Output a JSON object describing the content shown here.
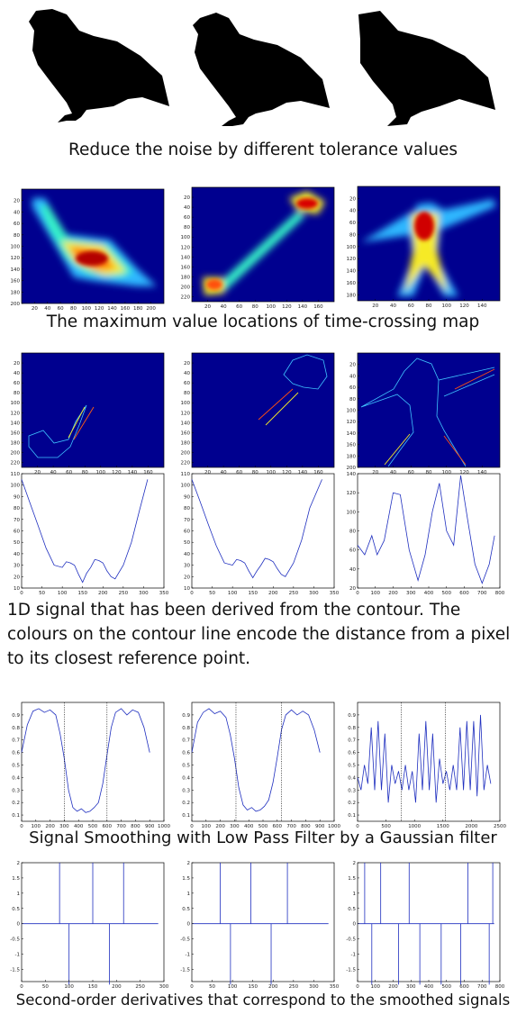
{
  "captions": {
    "row1": "Reduce the noise by different tolerance values",
    "row2": "The maximum value locations of time-crossing map",
    "row3": "1D signal that has been derived from the contour. The colours on the contour line encode the distance from a pixel to its closest reference point.",
    "row4": "Signal Smoothing with Low Pass Filter by a Gaussian filter",
    "row5": "Second-order derivatives that correspond to the smoothed signals"
  },
  "colors": {
    "bg_map": "#00008f",
    "signal": "#1f2fbf",
    "frame": "#000000"
  },
  "chart_data": [
    {
      "type": "heatmap",
      "panel": "heatmap-1",
      "xticks": [
        20,
        40,
        60,
        80,
        100,
        120,
        140,
        160,
        180,
        200
      ],
      "yticks": [
        20,
        40,
        60,
        80,
        100,
        120,
        140,
        160,
        180,
        200
      ],
      "xlim": [
        0,
        220
      ],
      "ylim": [
        0,
        200
      ]
    },
    {
      "type": "heatmap",
      "panel": "heatmap-2",
      "xticks": [
        20,
        40,
        60,
        80,
        100,
        120,
        140,
        160
      ],
      "yticks": [
        20,
        40,
        60,
        80,
        100,
        120,
        140,
        160,
        180,
        200,
        220
      ],
      "xlim": [
        0,
        180
      ],
      "ylim": [
        0,
        230
      ]
    },
    {
      "type": "heatmap",
      "panel": "heatmap-3",
      "xticks": [
        20,
        40,
        60,
        80,
        100,
        120,
        140
      ],
      "yticks": [
        20,
        40,
        60,
        80,
        100,
        120,
        140,
        160,
        180
      ],
      "xlim": [
        0,
        160
      ],
      "ylim": [
        0,
        190
      ]
    },
    {
      "type": "line",
      "panel": "contour-1",
      "xticks": [
        20,
        40,
        60,
        80,
        100,
        120,
        140,
        160
      ],
      "yticks": [
        20,
        40,
        60,
        80,
        100,
        120,
        140,
        160,
        180,
        200,
        220
      ],
      "xlim": [
        0,
        180
      ],
      "ylim": [
        0,
        230
      ]
    },
    {
      "type": "line",
      "panel": "contour-2",
      "xticks": [
        20,
        40,
        60,
        80,
        100,
        120,
        140,
        160
      ],
      "yticks": [
        20,
        40,
        60,
        80,
        100,
        120,
        140,
        160,
        180,
        200,
        220
      ],
      "xlim": [
        0,
        180
      ],
      "ylim": [
        0,
        230
      ]
    },
    {
      "type": "line",
      "panel": "contour-3",
      "xticks": [
        20,
        40,
        60,
        80,
        100,
        120,
        140
      ],
      "yticks": [
        20,
        40,
        60,
        80,
        100,
        120,
        140,
        160,
        180,
        200
      ],
      "xlim": [
        0,
        160
      ],
      "ylim": [
        0,
        200
      ]
    },
    {
      "type": "line",
      "panel": "signal-1",
      "xticks": [
        0,
        50,
        100,
        150,
        200,
        250,
        300,
        350
      ],
      "yticks": [
        10,
        20,
        30,
        40,
        50,
        60,
        70,
        80,
        90,
        100,
        110
      ],
      "xlim": [
        0,
        350
      ],
      "ylim": [
        10,
        110
      ],
      "x": [
        0,
        20,
        40,
        60,
        80,
        100,
        110,
        120,
        130,
        140,
        150,
        160,
        170,
        180,
        190,
        200,
        210,
        220,
        230,
        250,
        270,
        290,
        310
      ],
      "y": [
        105,
        85,
        65,
        45,
        30,
        28,
        33,
        32,
        30,
        22,
        15,
        23,
        28,
        35,
        34,
        32,
        25,
        20,
        18,
        30,
        50,
        78,
        105
      ]
    },
    {
      "type": "line",
      "panel": "signal-2",
      "xticks": [
        0,
        50,
        100,
        150,
        200,
        250,
        300,
        350
      ],
      "yticks": [
        10,
        20,
        30,
        40,
        50,
        60,
        70,
        80,
        90,
        100,
        110
      ],
      "xlim": [
        0,
        350
      ],
      "ylim": [
        10,
        110
      ],
      "x": [
        0,
        20,
        40,
        60,
        80,
        100,
        110,
        120,
        130,
        140,
        150,
        160,
        170,
        180,
        190,
        200,
        210,
        220,
        230,
        250,
        270,
        290,
        320
      ],
      "y": [
        105,
        86,
        66,
        47,
        32,
        30,
        35,
        34,
        32,
        25,
        19,
        25,
        30,
        36,
        35,
        33,
        27,
        22,
        20,
        32,
        52,
        80,
        105
      ]
    },
    {
      "type": "line",
      "panel": "signal-3",
      "xticks": [
        0,
        100,
        200,
        300,
        400,
        500,
        600,
        700,
        800
      ],
      "yticks": [
        20,
        40,
        60,
        80,
        100,
        120,
        140
      ],
      "xlim": [
        0,
        800
      ],
      "ylim": [
        20,
        140
      ],
      "x": [
        0,
        40,
        80,
        110,
        150,
        200,
        240,
        290,
        340,
        380,
        420,
        460,
        500,
        540,
        580,
        620,
        660,
        700,
        740,
        770
      ],
      "y": [
        65,
        55,
        75,
        55,
        70,
        120,
        118,
        60,
        28,
        55,
        100,
        130,
        80,
        65,
        138,
        90,
        45,
        25,
        45,
        75
      ]
    },
    {
      "type": "line",
      "panel": "smooth-1",
      "xticks": [
        0,
        100,
        200,
        300,
        400,
        500,
        600,
        700,
        800,
        900,
        1000
      ],
      "yticks": [
        0.1,
        0.2,
        0.3,
        0.4,
        0.5,
        0.6,
        0.7,
        0.8,
        0.9
      ],
      "xlim": [
        0,
        1000
      ],
      "ylim": [
        0.05,
        1.0
      ],
      "vlines": [
        300,
        600
      ],
      "x": [
        0,
        40,
        80,
        120,
        160,
        200,
        240,
        270,
        300,
        330,
        360,
        390,
        420,
        450,
        480,
        510,
        540,
        570,
        600,
        630,
        660,
        700,
        740,
        780,
        820,
        860,
        900
      ],
      "y": [
        0.6,
        0.82,
        0.93,
        0.95,
        0.92,
        0.94,
        0.9,
        0.75,
        0.55,
        0.3,
        0.16,
        0.13,
        0.15,
        0.12,
        0.13,
        0.16,
        0.2,
        0.35,
        0.58,
        0.8,
        0.92,
        0.95,
        0.9,
        0.94,
        0.92,
        0.8,
        0.6
      ]
    },
    {
      "type": "line",
      "panel": "smooth-2",
      "xticks": [
        0,
        100,
        200,
        300,
        400,
        500,
        600,
        700,
        800,
        900,
        1000
      ],
      "yticks": [
        0.1,
        0.2,
        0.3,
        0.4,
        0.5,
        0.6,
        0.7,
        0.8,
        0.9
      ],
      "xlim": [
        0,
        1000
      ],
      "ylim": [
        0.05,
        1.0
      ],
      "vlines": [
        310,
        630
      ],
      "x": [
        0,
        40,
        80,
        120,
        160,
        200,
        240,
        270,
        300,
        330,
        360,
        390,
        420,
        450,
        480,
        510,
        540,
        570,
        600,
        630,
        660,
        700,
        740,
        780,
        820,
        860,
        900
      ],
      "y": [
        0.6,
        0.84,
        0.92,
        0.95,
        0.91,
        0.93,
        0.88,
        0.74,
        0.55,
        0.32,
        0.18,
        0.14,
        0.16,
        0.13,
        0.14,
        0.17,
        0.22,
        0.36,
        0.56,
        0.78,
        0.9,
        0.94,
        0.9,
        0.93,
        0.9,
        0.78,
        0.6
      ]
    },
    {
      "type": "line",
      "panel": "smooth-3",
      "xticks": [
        0,
        500,
        1000,
        1500,
        2000,
        2500
      ],
      "yticks": [
        0.1,
        0.2,
        0.3,
        0.4,
        0.5,
        0.6,
        0.7,
        0.8,
        0.9
      ],
      "xlim": [
        0,
        2500
      ],
      "ylim": [
        0.05,
        1.0
      ],
      "vlines": [
        770,
        1540
      ],
      "x": [
        0,
        60,
        120,
        180,
        240,
        300,
        360,
        420,
        480,
        540,
        600,
        660,
        720,
        780,
        840,
        900,
        960,
        1020,
        1080,
        1140,
        1200,
        1260,
        1320,
        1380,
        1440,
        1500,
        1560,
        1620,
        1680,
        1740,
        1800,
        1860,
        1920,
        1980,
        2040,
        2100,
        2160,
        2220,
        2280,
        2340
      ],
      "y": [
        0.4,
        0.3,
        0.5,
        0.35,
        0.8,
        0.3,
        0.85,
        0.3,
        0.75,
        0.2,
        0.5,
        0.35,
        0.45,
        0.3,
        0.5,
        0.3,
        0.45,
        0.2,
        0.75,
        0.3,
        0.85,
        0.3,
        0.75,
        0.2,
        0.55,
        0.35,
        0.45,
        0.3,
        0.5,
        0.3,
        0.8,
        0.3,
        0.85,
        0.3,
        0.85,
        0.25,
        0.9,
        0.3,
        0.5,
        0.35
      ]
    },
    {
      "type": "line",
      "panel": "deriv-1",
      "xticks": [
        0,
        50,
        100,
        150,
        200,
        250,
        300
      ],
      "yticks": [
        -1.5,
        -1,
        -0.5,
        0,
        0.5,
        1,
        1.5,
        2
      ],
      "xlim": [
        0,
        300
      ],
      "ylim": [
        -1.9,
        2.0
      ],
      "spikes": [
        [
          80,
          2
        ],
        [
          100,
          -2
        ],
        [
          150,
          2
        ],
        [
          185,
          -2
        ],
        [
          215,
          2
        ]
      ]
    },
    {
      "type": "line",
      "panel": "deriv-2",
      "xticks": [
        0,
        50,
        100,
        150,
        200,
        250,
        300,
        350
      ],
      "yticks": [
        -1.5,
        -1,
        -0.5,
        0,
        0.5,
        1,
        1.5,
        2
      ],
      "xlim": [
        0,
        350
      ],
      "ylim": [
        -1.9,
        2.0
      ],
      "spikes": [
        [
          70,
          2
        ],
        [
          95,
          -2
        ],
        [
          145,
          2
        ],
        [
          195,
          -2
        ],
        [
          235,
          2
        ]
      ]
    },
    {
      "type": "line",
      "panel": "deriv-3",
      "xticks": [
        0,
        100,
        200,
        300,
        400,
        500,
        600,
        700,
        800
      ],
      "yticks": [
        -1.5,
        -1,
        -0.5,
        0,
        0.5,
        1,
        1.5,
        2
      ],
      "xlim": [
        0,
        800
      ],
      "ylim": [
        -1.9,
        2.0
      ],
      "spikes": [
        [
          40,
          2
        ],
        [
          80,
          -2
        ],
        [
          130,
          2
        ],
        [
          230,
          -2
        ],
        [
          290,
          2
        ],
        [
          350,
          -2
        ],
        [
          470,
          -2
        ],
        [
          580,
          -2
        ],
        [
          620,
          2
        ],
        [
          740,
          -2
        ],
        [
          760,
          2
        ]
      ]
    }
  ]
}
